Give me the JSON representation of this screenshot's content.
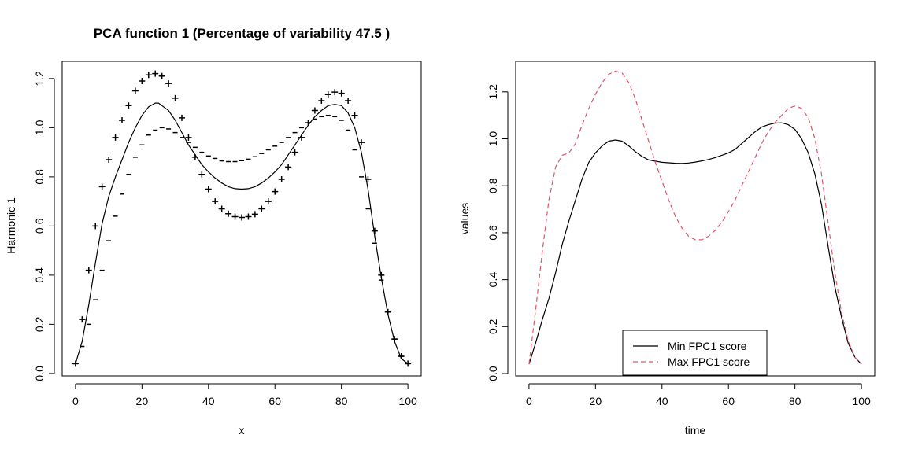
{
  "chart_data": [
    {
      "type": "line",
      "title": "PCA function 1 (Percentage of variability 47.5 )",
      "xlabel": "x",
      "ylabel": "Harmonic 1",
      "xlim": [
        -4,
        104
      ],
      "ylim": [
        -0.01,
        1.27
      ],
      "xticks": [
        "0",
        "20",
        "40",
        "60",
        "80",
        "100"
      ],
      "yticks": [
        "0.0",
        "0.2",
        "0.4",
        "0.6",
        "0.8",
        "1.0",
        "1.2"
      ],
      "grid": false,
      "series": [
        {
          "style": "solid-line",
          "color": "#000000",
          "x": [
            0,
            2,
            4,
            6,
            8,
            10,
            12,
            14,
            16,
            18,
            20,
            22,
            24,
            25,
            26,
            28,
            30,
            32,
            34,
            36,
            38,
            40,
            42,
            44,
            46,
            48,
            50,
            52,
            54,
            56,
            58,
            60,
            62,
            64,
            66,
            68,
            70,
            72,
            74,
            76,
            78,
            80,
            82,
            84,
            86,
            88,
            90,
            92,
            94,
            96,
            98,
            100
          ],
          "y": [
            0.04,
            0.13,
            0.28,
            0.45,
            0.61,
            0.72,
            0.8,
            0.87,
            0.94,
            1.0,
            1.05,
            1.085,
            1.1,
            1.1,
            1.09,
            1.07,
            1.03,
            0.98,
            0.93,
            0.89,
            0.85,
            0.82,
            0.795,
            0.775,
            0.76,
            0.752,
            0.75,
            0.752,
            0.76,
            0.775,
            0.795,
            0.82,
            0.85,
            0.89,
            0.93,
            0.97,
            1.01,
            1.045,
            1.07,
            1.09,
            1.095,
            1.09,
            1.06,
            1.0,
            0.9,
            0.75,
            0.56,
            0.39,
            0.24,
            0.13,
            0.06,
            0.04
          ]
        },
        {
          "style": "plus-markers",
          "marker": "+",
          "color": "#000000",
          "x": [
            0,
            2,
            4,
            6,
            8,
            10,
            12,
            14,
            16,
            18,
            20,
            22,
            24,
            26,
            28,
            30,
            32,
            34,
            36,
            38,
            40,
            42,
            44,
            46,
            48,
            50,
            52,
            54,
            56,
            58,
            60,
            62,
            64,
            66,
            68,
            70,
            72,
            74,
            76,
            78,
            80,
            82,
            84,
            86,
            88,
            90,
            92,
            94,
            96,
            98,
            100
          ],
          "y": [
            0.04,
            0.22,
            0.42,
            0.6,
            0.76,
            0.87,
            0.96,
            1.03,
            1.09,
            1.15,
            1.19,
            1.215,
            1.22,
            1.21,
            1.18,
            1.12,
            1.04,
            0.96,
            0.88,
            0.81,
            0.75,
            0.7,
            0.67,
            0.65,
            0.638,
            0.635,
            0.638,
            0.648,
            0.67,
            0.7,
            0.74,
            0.79,
            0.84,
            0.9,
            0.96,
            1.02,
            1.07,
            1.11,
            1.135,
            1.145,
            1.14,
            1.11,
            1.05,
            0.94,
            0.79,
            0.58,
            0.4,
            0.25,
            0.14,
            0.07,
            0.04
          ]
        },
        {
          "style": "dash-markers",
          "marker": "-",
          "color": "#000000",
          "x": [
            0,
            2,
            4,
            6,
            8,
            10,
            12,
            14,
            16,
            18,
            20,
            22,
            24,
            26,
            28,
            30,
            32,
            34,
            36,
            38,
            40,
            42,
            44,
            46,
            48,
            50,
            52,
            54,
            56,
            58,
            60,
            62,
            64,
            66,
            68,
            70,
            72,
            74,
            76,
            78,
            80,
            82,
            84,
            86,
            88,
            90,
            92,
            94,
            96,
            98,
            100
          ],
          "y": [
            0.04,
            0.11,
            0.2,
            0.3,
            0.42,
            0.54,
            0.64,
            0.73,
            0.81,
            0.88,
            0.93,
            0.97,
            0.99,
            1.0,
            0.995,
            0.98,
            0.96,
            0.94,
            0.92,
            0.9,
            0.885,
            0.875,
            0.865,
            0.862,
            0.862,
            0.866,
            0.872,
            0.882,
            0.895,
            0.91,
            0.925,
            0.94,
            0.96,
            0.98,
            1.0,
            1.02,
            1.035,
            1.045,
            1.05,
            1.045,
            1.03,
            0.99,
            0.91,
            0.8,
            0.67,
            0.53,
            0.38,
            0.25,
            0.14,
            0.07,
            0.04
          ]
        }
      ]
    },
    {
      "type": "line",
      "title": "",
      "xlabel": "time",
      "ylabel": "values",
      "xlim": [
        -4,
        104
      ],
      "ylim": [
        -0.01,
        1.33
      ],
      "xticks": [
        "0",
        "20",
        "40",
        "60",
        "80",
        "100"
      ],
      "yticks": [
        "0.0",
        "0.2",
        "0.4",
        "0.6",
        "0.8",
        "1.0",
        "1.2"
      ],
      "grid": false,
      "legend_position": "bottom-center",
      "series": [
        {
          "name": "Min FPC1 score",
          "style": "solid",
          "color": "#000000",
          "x": [
            0,
            2,
            4,
            6,
            8,
            10,
            12,
            14,
            16,
            18,
            20,
            22,
            24,
            26,
            28,
            30,
            32,
            34,
            36,
            38,
            40,
            42,
            44,
            46,
            48,
            50,
            52,
            54,
            56,
            58,
            60,
            62,
            64,
            66,
            68,
            70,
            72,
            74,
            76,
            78,
            80,
            82,
            84,
            86,
            88,
            90,
            92,
            94,
            96,
            98,
            100
          ],
          "y": [
            0.04,
            0.13,
            0.23,
            0.32,
            0.43,
            0.55,
            0.65,
            0.74,
            0.83,
            0.9,
            0.94,
            0.97,
            0.99,
            0.995,
            0.99,
            0.97,
            0.945,
            0.925,
            0.91,
            0.905,
            0.9,
            0.898,
            0.896,
            0.895,
            0.897,
            0.901,
            0.906,
            0.912,
            0.92,
            0.93,
            0.94,
            0.955,
            0.98,
            1.005,
            1.03,
            1.05,
            1.06,
            1.067,
            1.068,
            1.06,
            1.04,
            1.0,
            0.94,
            0.85,
            0.72,
            0.54,
            0.37,
            0.24,
            0.13,
            0.07,
            0.04
          ]
        },
        {
          "name": "Max FPC1 score",
          "style": "dashed",
          "color": "#df536b",
          "x": [
            0,
            2,
            4,
            6,
            8,
            10,
            12,
            14,
            16,
            18,
            20,
            22,
            24,
            26,
            28,
            30,
            32,
            34,
            36,
            38,
            40,
            42,
            44,
            46,
            48,
            50,
            52,
            54,
            56,
            58,
            60,
            62,
            64,
            66,
            68,
            70,
            72,
            74,
            76,
            78,
            80,
            82,
            84,
            86,
            88,
            90,
            92,
            94,
            96,
            98,
            100
          ],
          "y": [
            0.04,
            0.27,
            0.52,
            0.74,
            0.88,
            0.93,
            0.94,
            0.98,
            1.06,
            1.13,
            1.19,
            1.24,
            1.275,
            1.288,
            1.28,
            1.24,
            1.17,
            1.08,
            0.99,
            0.9,
            0.82,
            0.74,
            0.67,
            0.62,
            0.585,
            0.57,
            0.57,
            0.585,
            0.61,
            0.645,
            0.69,
            0.74,
            0.8,
            0.86,
            0.92,
            0.98,
            1.03,
            1.07,
            1.1,
            1.13,
            1.14,
            1.13,
            1.09,
            1.0,
            0.85,
            0.64,
            0.43,
            0.26,
            0.14,
            0.07,
            0.04
          ]
        }
      ]
    }
  ]
}
